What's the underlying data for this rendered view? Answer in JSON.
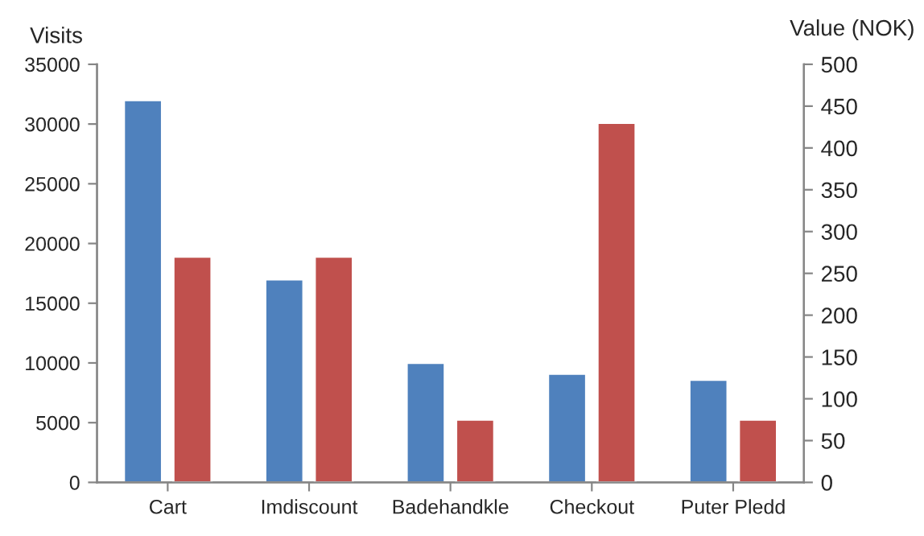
{
  "chart_data": {
    "type": "bar",
    "ylabel": "Visits",
    "y2label": "Value (NOK)",
    "categories": [
      "Cart",
      "Imdiscount",
      "Badehandkle",
      "Checkout",
      "Puter Pledd"
    ],
    "series": [
      {
        "color": "#4f81bd",
        "values": [
          32000,
          17000,
          10000,
          9100,
          8600
        ]
      },
      {
        "color": "#c0504d",
        "axis": "y2",
        "values": [
          270,
          270,
          75,
          430,
          75
        ]
      }
    ],
    "ylim": [
      0,
      35000
    ],
    "yticks": [
      0,
      5000,
      10000,
      15000,
      20000,
      25000,
      30000,
      35000
    ],
    "y2lim": [
      0,
      500
    ],
    "y2ticks": [
      0,
      50,
      100,
      150,
      200,
      250,
      300,
      350,
      400,
      450,
      500
    ],
    "grid": false,
    "legend": false
  }
}
